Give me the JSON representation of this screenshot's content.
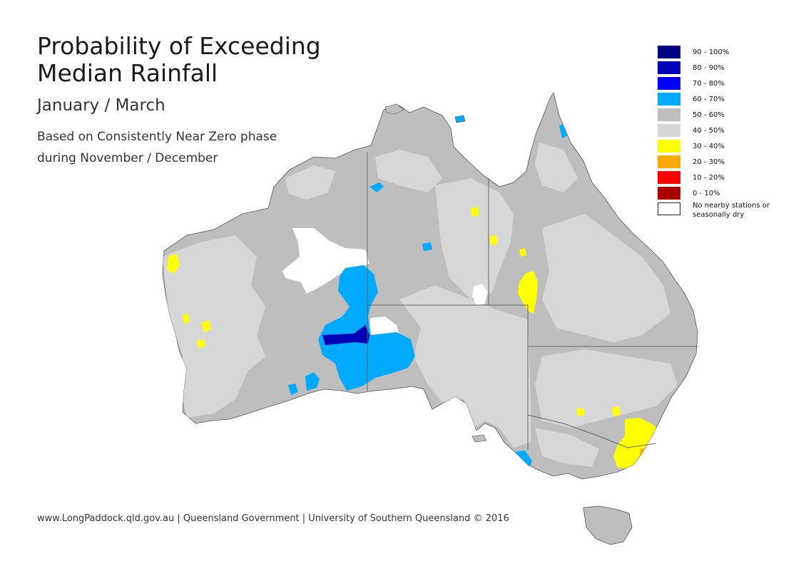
{
  "header": {
    "title": "Probability of Exceeding Median Rainfall",
    "subtitle": "January / March",
    "description": "Based on Consistently Near Zero phase during November / December"
  },
  "credit": "www.LongPaddock.qld.gov.au | Queensland Government | University of Southern Queensland © 2016",
  "legend": {
    "items": [
      {
        "label": "90 - 100%",
        "color": "#000080"
      },
      {
        "label": "80 - 90%",
        "color": "#0000b8"
      },
      {
        "label": "70 - 80%",
        "color": "#0000ff"
      },
      {
        "label": "60 - 70%",
        "color": "#00aaff"
      },
      {
        "label": "50 - 60%",
        "color": "#bebebe"
      },
      {
        "label": "40 - 50%",
        "color": "#d7d7d7"
      },
      {
        "label": "30 - 40%",
        "color": "#ffff00"
      },
      {
        "label": "20 - 30%",
        "color": "#ffaa00"
      },
      {
        "label": "10 - 20%",
        "color": "#ff0000"
      },
      {
        "label": "0 - 10%",
        "color": "#aa0000"
      },
      {
        "label": "No nearby stations or seasonally dry",
        "color": "#ffffff"
      }
    ]
  },
  "map": {
    "land_color": "#bebebe",
    "light_color": "#d7d7d7",
    "border_color": "#666666"
  }
}
